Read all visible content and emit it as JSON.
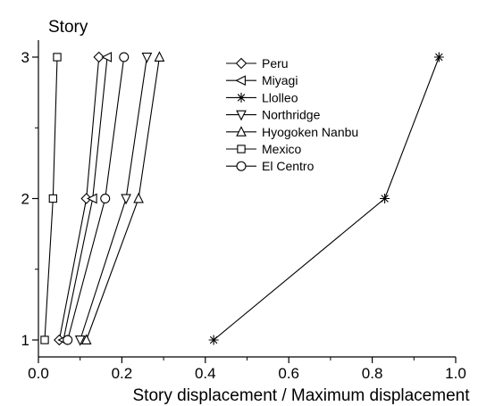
{
  "chart_data": {
    "type": "line",
    "orientation": "horizontal-values-vertical-categories",
    "xlabel": "Story displacement / Maximum displacement",
    "ylabel": "Story",
    "xlim": [
      0.0,
      1.0
    ],
    "ylim": [
      1,
      3
    ],
    "x_ticks": [
      "0.0",
      "0.2",
      "0.4",
      "0.6",
      "0.8",
      "1.0"
    ],
    "y_ticks": [
      "1",
      "2",
      "3"
    ],
    "grid": false,
    "legend_position": "top-right",
    "series": [
      {
        "name": "Peru",
        "marker": "diamond",
        "x": [
          0.05,
          0.115,
          0.145
        ],
        "y": [
          1,
          2,
          3
        ]
      },
      {
        "name": "Miyagi",
        "marker": "triangle-left",
        "x": [
          0.06,
          0.13,
          0.165
        ],
        "y": [
          1,
          2,
          3
        ]
      },
      {
        "name": "Llolleo",
        "marker": "asterisk",
        "x": [
          0.42,
          0.83,
          0.96
        ],
        "y": [
          1,
          2,
          3
        ]
      },
      {
        "name": "Northridge",
        "marker": "triangle-down",
        "x": [
          0.1,
          0.21,
          0.26
        ],
        "y": [
          1,
          2,
          3
        ]
      },
      {
        "name": "Hyogoken Nanbu",
        "marker": "triangle-up",
        "x": [
          0.115,
          0.24,
          0.29
        ],
        "y": [
          1,
          2,
          3
        ]
      },
      {
        "name": "Mexico",
        "marker": "square",
        "x": [
          0.015,
          0.035,
          0.045
        ],
        "y": [
          1,
          2,
          3
        ]
      },
      {
        "name": "El Centro",
        "marker": "circle",
        "x": [
          0.07,
          0.16,
          0.205
        ],
        "y": [
          1,
          2,
          3
        ]
      }
    ]
  }
}
